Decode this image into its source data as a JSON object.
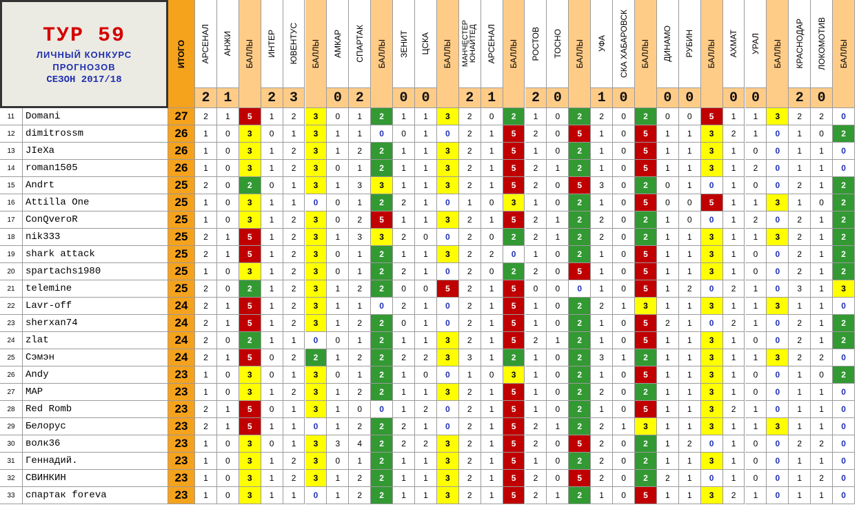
{
  "title": {
    "tour": "ТУР  59",
    "line1": "ЛИЧНЫЙ  КОНКУРС",
    "line2": "ПРОГНОЗОВ",
    "season": "СЕЗОН 2017/18"
  },
  "total_label": "ИТОГО",
  "points_label": "БАЛЛЫ",
  "colors": {
    "pts_5": "#c00000",
    "pts_3": "#ffff00",
    "pts_2": "#339933",
    "pts_0": "#ffffff",
    "total_bg": "#f5a21d",
    "score_header_bg": "#ffcc88",
    "points_header_bg": "#ffcc88"
  },
  "matches": [
    {
      "home": "АРСЕНАЛ",
      "away": "АНЖИ",
      "home_goals": "2",
      "away_goals": "1"
    },
    {
      "home": "ИНТЕР",
      "away": "ЮВЕНТУС",
      "home_goals": "2",
      "away_goals": "3"
    },
    {
      "home": "АМКАР",
      "away": "СПАРТАК",
      "home_goals": "0",
      "away_goals": "2"
    },
    {
      "home": "ЗЕНИТ",
      "away": "ЦСКА",
      "home_goals": "0",
      "away_goals": "0"
    },
    {
      "home": "МАНЧЕСТЕР\nЮНАЙТЕД",
      "away": "АРСЕНАЛ",
      "home_goals": "2",
      "away_goals": "1"
    },
    {
      "home": "РОСТОВ",
      "away": "ТОСНО",
      "home_goals": "2",
      "away_goals": "0"
    },
    {
      "home": "УФА",
      "away": "СКА ХАБАРОВСК",
      "home_goals": "1",
      "away_goals": "0"
    },
    {
      "home": "ДИНАМО",
      "away": "РУБИН",
      "home_goals": "0",
      "away_goals": "0"
    },
    {
      "home": "АХМАТ",
      "away": "УРАЛ",
      "home_goals": "0",
      "away_goals": "0"
    },
    {
      "home": "КРАСНОДАР",
      "away": "ЛОКОМОТИВ",
      "home_goals": "2",
      "away_goals": "0"
    }
  ],
  "rows": [
    {
      "rank": "11",
      "name": "Domani",
      "total": "27",
      "preds": [
        [
          "2",
          "1",
          "5"
        ],
        [
          "1",
          "2",
          "3"
        ],
        [
          "0",
          "1",
          "2"
        ],
        [
          "1",
          "1",
          "3"
        ],
        [
          "2",
          "0",
          "2"
        ],
        [
          "1",
          "0",
          "2"
        ],
        [
          "2",
          "0",
          "2"
        ],
        [
          "0",
          "0",
          "5"
        ],
        [
          "1",
          "1",
          "3"
        ],
        [
          "2",
          "2",
          "0"
        ]
      ]
    },
    {
      "rank": "12",
      "name": "dimitrossm",
      "total": "26",
      "preds": [
        [
          "1",
          "0",
          "3"
        ],
        [
          "0",
          "1",
          "3"
        ],
        [
          "1",
          "1",
          "0"
        ],
        [
          "0",
          "1",
          "0"
        ],
        [
          "2",
          "1",
          "5"
        ],
        [
          "2",
          "0",
          "5"
        ],
        [
          "1",
          "0",
          "5"
        ],
        [
          "1",
          "1",
          "3"
        ],
        [
          "2",
          "1",
          "0"
        ],
        [
          "1",
          "0",
          "2"
        ]
      ]
    },
    {
      "rank": "13",
      "name": "JIeXa",
      "total": "26",
      "preds": [
        [
          "1",
          "0",
          "3"
        ],
        [
          "1",
          "2",
          "3"
        ],
        [
          "1",
          "2",
          "2"
        ],
        [
          "1",
          "1",
          "3"
        ],
        [
          "2",
          "1",
          "5"
        ],
        [
          "1",
          "0",
          "2"
        ],
        [
          "1",
          "0",
          "5"
        ],
        [
          "1",
          "1",
          "3"
        ],
        [
          "1",
          "0",
          "0"
        ],
        [
          "1",
          "1",
          "0"
        ]
      ]
    },
    {
      "rank": "14",
      "name": "roman1505",
      "total": "26",
      "preds": [
        [
          "1",
          "0",
          "3"
        ],
        [
          "1",
          "2",
          "3"
        ],
        [
          "0",
          "1",
          "2"
        ],
        [
          "1",
          "1",
          "3"
        ],
        [
          "2",
          "1",
          "5"
        ],
        [
          "2",
          "1",
          "2"
        ],
        [
          "1",
          "0",
          "5"
        ],
        [
          "1",
          "1",
          "3"
        ],
        [
          "1",
          "2",
          "0"
        ],
        [
          "1",
          "1",
          "0"
        ]
      ]
    },
    {
      "rank": "15",
      "name": "Andrt",
      "total": "25",
      "preds": [
        [
          "2",
          "0",
          "2"
        ],
        [
          "0",
          "1",
          "3"
        ],
        [
          "1",
          "3",
          "3"
        ],
        [
          "1",
          "1",
          "3"
        ],
        [
          "2",
          "1",
          "5"
        ],
        [
          "2",
          "0",
          "5"
        ],
        [
          "3",
          "0",
          "2"
        ],
        [
          "0",
          "1",
          "0"
        ],
        [
          "1",
          "0",
          "0"
        ],
        [
          "2",
          "1",
          "2"
        ]
      ]
    },
    {
      "rank": "16",
      "name": "Attilla One",
      "total": "25",
      "preds": [
        [
          "1",
          "0",
          "3"
        ],
        [
          "1",
          "1",
          "0"
        ],
        [
          "0",
          "1",
          "2"
        ],
        [
          "2",
          "1",
          "0"
        ],
        [
          "1",
          "0",
          "3"
        ],
        [
          "1",
          "0",
          "2"
        ],
        [
          "1",
          "0",
          "5"
        ],
        [
          "0",
          "0",
          "5"
        ],
        [
          "1",
          "1",
          "3"
        ],
        [
          "1",
          "0",
          "2"
        ]
      ]
    },
    {
      "rank": "17",
      "name": "ConQveroR",
      "total": "25",
      "preds": [
        [
          "1",
          "0",
          "3"
        ],
        [
          "1",
          "2",
          "3"
        ],
        [
          "0",
          "2",
          "5"
        ],
        [
          "1",
          "1",
          "3"
        ],
        [
          "2",
          "1",
          "5"
        ],
        [
          "2",
          "1",
          "2"
        ],
        [
          "2",
          "0",
          "2"
        ],
        [
          "1",
          "0",
          "0"
        ],
        [
          "1",
          "2",
          "0"
        ],
        [
          "2",
          "1",
          "2"
        ]
      ]
    },
    {
      "rank": "18",
      "name": "nik333",
      "total": "25",
      "preds": [
        [
          "2",
          "1",
          "5"
        ],
        [
          "1",
          "2",
          "3"
        ],
        [
          "1",
          "3",
          "3"
        ],
        [
          "2",
          "0",
          "0"
        ],
        [
          "2",
          "0",
          "2"
        ],
        [
          "2",
          "1",
          "2"
        ],
        [
          "2",
          "0",
          "2"
        ],
        [
          "1",
          "1",
          "3"
        ],
        [
          "1",
          "1",
          "3"
        ],
        [
          "2",
          "1",
          "2"
        ]
      ]
    },
    {
      "rank": "19",
      "name": "shark attack",
      "total": "25",
      "preds": [
        [
          "2",
          "1",
          "5"
        ],
        [
          "1",
          "2",
          "3"
        ],
        [
          "0",
          "1",
          "2"
        ],
        [
          "1",
          "1",
          "3"
        ],
        [
          "2",
          "2",
          "0"
        ],
        [
          "1",
          "0",
          "2"
        ],
        [
          "1",
          "0",
          "5"
        ],
        [
          "1",
          "1",
          "3"
        ],
        [
          "1",
          "0",
          "0"
        ],
        [
          "2",
          "1",
          "2"
        ]
      ]
    },
    {
      "rank": "20",
      "name": "spartachs1980",
      "total": "25",
      "preds": [
        [
          "1",
          "0",
          "3"
        ],
        [
          "1",
          "2",
          "3"
        ],
        [
          "0",
          "1",
          "2"
        ],
        [
          "2",
          "1",
          "0"
        ],
        [
          "2",
          "0",
          "2"
        ],
        [
          "2",
          "0",
          "5"
        ],
        [
          "1",
          "0",
          "5"
        ],
        [
          "1",
          "1",
          "3"
        ],
        [
          "1",
          "0",
          "0"
        ],
        [
          "2",
          "1",
          "2"
        ]
      ]
    },
    {
      "rank": "21",
      "name": "telemine",
      "total": "25",
      "preds": [
        [
          "2",
          "0",
          "2"
        ],
        [
          "1",
          "2",
          "3"
        ],
        [
          "1",
          "2",
          "2"
        ],
        [
          "0",
          "0",
          "5"
        ],
        [
          "2",
          "1",
          "5"
        ],
        [
          "0",
          "0",
          "0"
        ],
        [
          "1",
          "0",
          "5"
        ],
        [
          "1",
          "2",
          "0"
        ],
        [
          "2",
          "1",
          "0"
        ],
        [
          "3",
          "1",
          "3"
        ]
      ]
    },
    {
      "rank": "22",
      "name": "Lavr-off",
      "total": "24",
      "preds": [
        [
          "2",
          "1",
          "5"
        ],
        [
          "1",
          "2",
          "3"
        ],
        [
          "1",
          "1",
          "0"
        ],
        [
          "2",
          "1",
          "0"
        ],
        [
          "2",
          "1",
          "5"
        ],
        [
          "1",
          "0",
          "2"
        ],
        [
          "2",
          "1",
          "3"
        ],
        [
          "1",
          "1",
          "3"
        ],
        [
          "1",
          "1",
          "3"
        ],
        [
          "1",
          "1",
          "0"
        ]
      ]
    },
    {
      "rank": "23",
      "name": "sherxan74",
      "total": "24",
      "preds": [
        [
          "2",
          "1",
          "5"
        ],
        [
          "1",
          "2",
          "3"
        ],
        [
          "1",
          "2",
          "2"
        ],
        [
          "0",
          "1",
          "0"
        ],
        [
          "2",
          "1",
          "5"
        ],
        [
          "1",
          "0",
          "2"
        ],
        [
          "1",
          "0",
          "5"
        ],
        [
          "2",
          "1",
          "0"
        ],
        [
          "2",
          "1",
          "0"
        ],
        [
          "2",
          "1",
          "2"
        ]
      ]
    },
    {
      "rank": "24",
      "name": "zlat",
      "total": "24",
      "preds": [
        [
          "2",
          "0",
          "2"
        ],
        [
          "1",
          "1",
          "0"
        ],
        [
          "0",
          "1",
          "2"
        ],
        [
          "1",
          "1",
          "3"
        ],
        [
          "2",
          "1",
          "5"
        ],
        [
          "2",
          "1",
          "2"
        ],
        [
          "1",
          "0",
          "5"
        ],
        [
          "1",
          "1",
          "3"
        ],
        [
          "1",
          "0",
          "0"
        ],
        [
          "2",
          "1",
          "2"
        ]
      ]
    },
    {
      "rank": "25",
      "name": "Сэмэн",
      "total": "24",
      "preds": [
        [
          "2",
          "1",
          "5"
        ],
        [
          "0",
          "2",
          "2"
        ],
        [
          "1",
          "2",
          "2"
        ],
        [
          "2",
          "2",
          "3"
        ],
        [
          "3",
          "1",
          "2"
        ],
        [
          "1",
          "0",
          "2"
        ],
        [
          "3",
          "1",
          "2"
        ],
        [
          "1",
          "1",
          "3"
        ],
        [
          "1",
          "1",
          "3"
        ],
        [
          "2",
          "2",
          "0"
        ]
      ]
    },
    {
      "rank": "26",
      "name": "Andy",
      "total": "23",
      "preds": [
        [
          "1",
          "0",
          "3"
        ],
        [
          "0",
          "1",
          "3"
        ],
        [
          "0",
          "1",
          "2"
        ],
        [
          "1",
          "0",
          "0"
        ],
        [
          "1",
          "0",
          "3"
        ],
        [
          "1",
          "0",
          "2"
        ],
        [
          "1",
          "0",
          "5"
        ],
        [
          "1",
          "1",
          "3"
        ],
        [
          "1",
          "0",
          "0"
        ],
        [
          "1",
          "0",
          "2"
        ]
      ]
    },
    {
      "rank": "27",
      "name": "МАР",
      "total": "23",
      "preds": [
        [
          "1",
          "0",
          "3"
        ],
        [
          "1",
          "2",
          "3"
        ],
        [
          "1",
          "2",
          "2"
        ],
        [
          "1",
          "1",
          "3"
        ],
        [
          "2",
          "1",
          "5"
        ],
        [
          "1",
          "0",
          "2"
        ],
        [
          "2",
          "0",
          "2"
        ],
        [
          "1",
          "1",
          "3"
        ],
        [
          "1",
          "0",
          "0"
        ],
        [
          "1",
          "1",
          "0"
        ]
      ]
    },
    {
      "rank": "28",
      "name": "Red Romb",
      "total": "23",
      "preds": [
        [
          "2",
          "1",
          "5"
        ],
        [
          "0",
          "1",
          "3"
        ],
        [
          "1",
          "0",
          "0"
        ],
        [
          "1",
          "2",
          "0"
        ],
        [
          "2",
          "1",
          "5"
        ],
        [
          "1",
          "0",
          "2"
        ],
        [
          "1",
          "0",
          "5"
        ],
        [
          "1",
          "1",
          "3"
        ],
        [
          "2",
          "1",
          "0"
        ],
        [
          "1",
          "1",
          "0"
        ]
      ]
    },
    {
      "rank": "29",
      "name": "Белорус",
      "total": "23",
      "preds": [
        [
          "2",
          "1",
          "5"
        ],
        [
          "1",
          "1",
          "0"
        ],
        [
          "1",
          "2",
          "2"
        ],
        [
          "2",
          "1",
          "0"
        ],
        [
          "2",
          "1",
          "5"
        ],
        [
          "2",
          "1",
          "2"
        ],
        [
          "2",
          "1",
          "3"
        ],
        [
          "1",
          "1",
          "3"
        ],
        [
          "1",
          "1",
          "3"
        ],
        [
          "1",
          "1",
          "0"
        ]
      ]
    },
    {
      "rank": "30",
      "name": "волк36",
      "total": "23",
      "preds": [
        [
          "1",
          "0",
          "3"
        ],
        [
          "0",
          "1",
          "3"
        ],
        [
          "3",
          "4",
          "2"
        ],
        [
          "2",
          "2",
          "3"
        ],
        [
          "2",
          "1",
          "5"
        ],
        [
          "2",
          "0",
          "5"
        ],
        [
          "2",
          "0",
          "2"
        ],
        [
          "1",
          "2",
          "0"
        ],
        [
          "1",
          "0",
          "0"
        ],
        [
          "2",
          "2",
          "0"
        ]
      ]
    },
    {
      "rank": "31",
      "name": "Геннадий.",
      "total": "23",
      "preds": [
        [
          "1",
          "0",
          "3"
        ],
        [
          "1",
          "2",
          "3"
        ],
        [
          "0",
          "1",
          "2"
        ],
        [
          "1",
          "1",
          "3"
        ],
        [
          "2",
          "1",
          "5"
        ],
        [
          "1",
          "0",
          "2"
        ],
        [
          "2",
          "0",
          "2"
        ],
        [
          "1",
          "1",
          "3"
        ],
        [
          "1",
          "0",
          "0"
        ],
        [
          "1",
          "1",
          "0"
        ]
      ]
    },
    {
      "rank": "32",
      "name": "СВИНКИН",
      "total": "23",
      "preds": [
        [
          "1",
          "0",
          "3"
        ],
        [
          "1",
          "2",
          "3"
        ],
        [
          "1",
          "2",
          "2"
        ],
        [
          "1",
          "1",
          "3"
        ],
        [
          "2",
          "1",
          "5"
        ],
        [
          "2",
          "0",
          "5"
        ],
        [
          "2",
          "0",
          "2"
        ],
        [
          "2",
          "1",
          "0"
        ],
        [
          "1",
          "0",
          "0"
        ],
        [
          "1",
          "2",
          "0"
        ]
      ]
    },
    {
      "rank": "33",
      "name": "спартак foreva",
      "total": "23",
      "preds": [
        [
          "1",
          "0",
          "3"
        ],
        [
          "1",
          "1",
          "0"
        ],
        [
          "1",
          "2",
          "2"
        ],
        [
          "1",
          "1",
          "3"
        ],
        [
          "2",
          "1",
          "5"
        ],
        [
          "2",
          "1",
          "2"
        ],
        [
          "1",
          "0",
          "5"
        ],
        [
          "1",
          "1",
          "3"
        ],
        [
          "2",
          "1",
          "0"
        ],
        [
          "1",
          "1",
          "0"
        ]
      ]
    }
  ]
}
